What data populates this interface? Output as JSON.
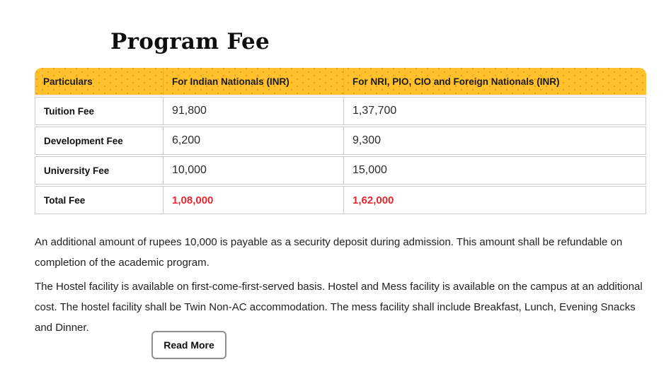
{
  "page": {
    "title": "Program Fee"
  },
  "table": {
    "headers": [
      "Particulars",
      "For Indian Nationals (INR)",
      "For NRI, PIO, CIO and Foreign Nationals (INR)"
    ],
    "rows": [
      {
        "label": "Tuition Fee",
        "indian": "91,800",
        "foreign": "1,37,700",
        "highlight": false
      },
      {
        "label": "Development Fee",
        "indian": "6,200",
        "foreign": "9,300",
        "highlight": false
      },
      {
        "label": "University Fee",
        "indian": "10,000",
        "foreign": "15,000",
        "highlight": false
      },
      {
        "label": "Total Fee",
        "indian": "1,08,000",
        "foreign": "1,62,000",
        "highlight": true
      }
    ]
  },
  "notes": [
    "An additional amount of rupees 10,000 is payable as a security deposit during admission. This amount shall be refundable on completion of the academic program.",
    "The Hostel facility is available on first-come-first-served basis. Hostel and Mess facility is available on the campus at an additional cost. The hostel facility shall be Twin Non-AC accommodation. The mess facility shall include Breakfast, Lunch, Evening Snacks and Dinner."
  ],
  "button": {
    "label": "Read More"
  },
  "colors": {
    "header_bg": "#ffc12c",
    "header_dot": "#ef9d21",
    "highlight_text": "#e8262e",
    "border": "#cbcbcb"
  }
}
